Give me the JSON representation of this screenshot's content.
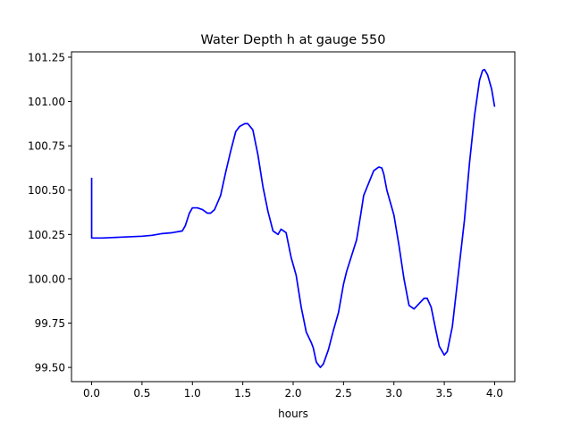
{
  "chart_data": {
    "type": "line",
    "title": "Water Depth h at gauge 550",
    "xlabel": "hours",
    "ylabel": "",
    "xlim": [
      -0.2,
      4.2
    ],
    "ylim": [
      99.42,
      101.28
    ],
    "x_ticks": [
      0.0,
      0.5,
      1.0,
      1.5,
      2.0,
      2.5,
      3.0,
      3.5,
      4.0
    ],
    "x_tick_labels": [
      "0.0",
      "0.5",
      "1.0",
      "1.5",
      "2.0",
      "2.5",
      "3.0",
      "3.5",
      "4.0"
    ],
    "y_ticks": [
      99.5,
      99.75,
      100.0,
      100.25,
      100.5,
      100.75,
      101.0,
      101.25
    ],
    "y_tick_labels": [
      "99.50",
      "99.75",
      "100.00",
      "100.25",
      "100.50",
      "100.75",
      "101.00",
      "101.25"
    ],
    "grid": false,
    "legend": "none",
    "series": [
      {
        "color": "#0000ff",
        "x": [
          0.0,
          0.0,
          0.1,
          0.3,
          0.5,
          0.6,
          0.7,
          0.8,
          0.9,
          0.93,
          0.97,
          1.0,
          1.05,
          1.1,
          1.15,
          1.18,
          1.22,
          1.28,
          1.33,
          1.38,
          1.43,
          1.47,
          1.52,
          1.55,
          1.6,
          1.65,
          1.7,
          1.75,
          1.8,
          1.85,
          1.88,
          1.93,
          1.98,
          2.03,
          2.08,
          2.13,
          2.18,
          2.2,
          2.23,
          2.27,
          2.3,
          2.35,
          2.4,
          2.45,
          2.5,
          2.53,
          2.58,
          2.63,
          2.67,
          2.7,
          2.75,
          2.8,
          2.85,
          2.88,
          2.9,
          2.93,
          2.97,
          3.0,
          3.05,
          3.1,
          3.15,
          3.2,
          3.25,
          3.3,
          3.33,
          3.37,
          3.42,
          3.45,
          3.5,
          3.53,
          3.58,
          3.63,
          3.7,
          3.75,
          3.8,
          3.85,
          3.88,
          3.9,
          3.93,
          3.97,
          4.0
        ],
        "y": [
          100.57,
          100.23,
          100.23,
          100.235,
          100.24,
          100.245,
          100.255,
          100.26,
          100.27,
          100.3,
          100.37,
          100.4,
          100.4,
          100.39,
          100.37,
          100.37,
          100.39,
          100.47,
          100.6,
          100.72,
          100.83,
          100.86,
          100.875,
          100.875,
          100.84,
          100.7,
          100.52,
          100.38,
          100.27,
          100.25,
          100.28,
          100.26,
          100.12,
          100.02,
          99.84,
          99.7,
          99.64,
          99.61,
          99.53,
          99.5,
          99.52,
          99.6,
          99.71,
          99.81,
          99.97,
          100.04,
          100.13,
          100.22,
          100.36,
          100.47,
          100.54,
          100.61,
          100.63,
          100.625,
          100.59,
          100.5,
          100.42,
          100.36,
          100.19,
          100.0,
          99.85,
          99.83,
          99.86,
          99.89,
          99.89,
          99.84,
          99.7,
          99.62,
          99.57,
          99.59,
          99.73,
          99.98,
          100.33,
          100.65,
          100.92,
          101.12,
          101.175,
          101.18,
          101.15,
          101.07,
          100.97
        ]
      }
    ]
  }
}
